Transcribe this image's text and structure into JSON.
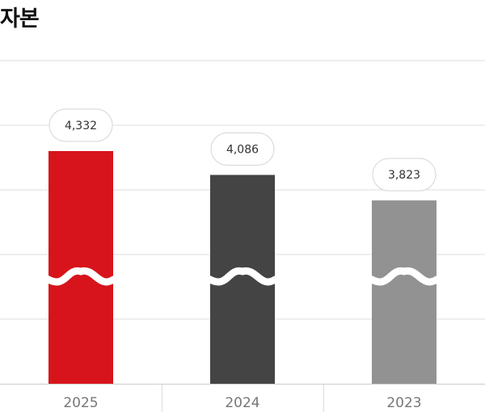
{
  "title": "자본",
  "chart_data": {
    "type": "bar",
    "title": "자본",
    "categories": [
      "2025",
      "2024",
      "2023"
    ],
    "values": [
      4332,
      4086,
      3823
    ],
    "data_labels": [
      "4,332",
      "4,086",
      "3,823"
    ],
    "colors": [
      "#d7141b",
      "#444444",
      "#929292"
    ],
    "axis_break": true,
    "grid": true,
    "legend": "none"
  }
}
